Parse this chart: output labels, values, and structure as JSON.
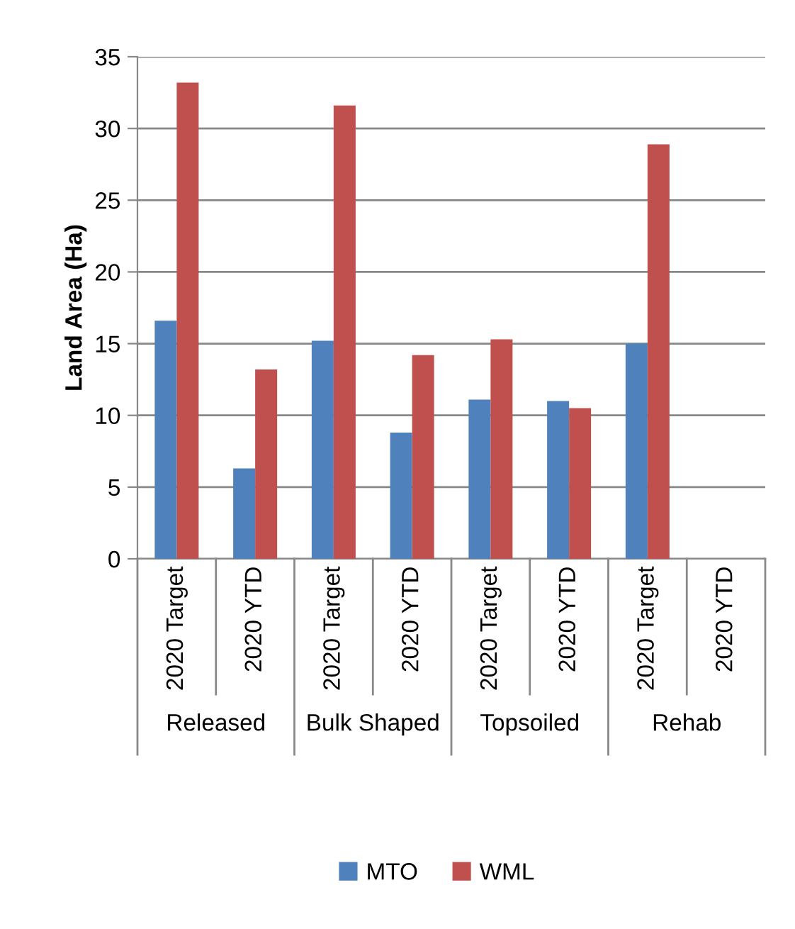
{
  "chart_data": {
    "type": "bar",
    "ylabel": "Land Area (Ha)",
    "categories": [
      "2020 Target",
      "2020 YTD",
      "2020 Target",
      "2020 YTD",
      "2020 Target",
      "2020 YTD",
      "2020 Target",
      "2020 YTD"
    ],
    "annotations": [
      "Released",
      "Bulk Shaped",
      "Topsoiled",
      "Rehab"
    ],
    "series": [
      {
        "name": "MTO",
        "color": "#4f81bd",
        "values": [
          16.6,
          6.3,
          15.2,
          8.8,
          11.1,
          11.0,
          15.0,
          null
        ]
      },
      {
        "name": "WML",
        "color": "#c0504d",
        "values": [
          33.2,
          13.2,
          31.6,
          14.2,
          15.3,
          10.5,
          28.9,
          null
        ]
      }
    ],
    "ylim": [
      0,
      35
    ],
    "yticks": [
      0,
      5,
      10,
      15,
      20,
      25,
      30,
      35
    ],
    "grid": "y",
    "legend": "bottom"
  }
}
